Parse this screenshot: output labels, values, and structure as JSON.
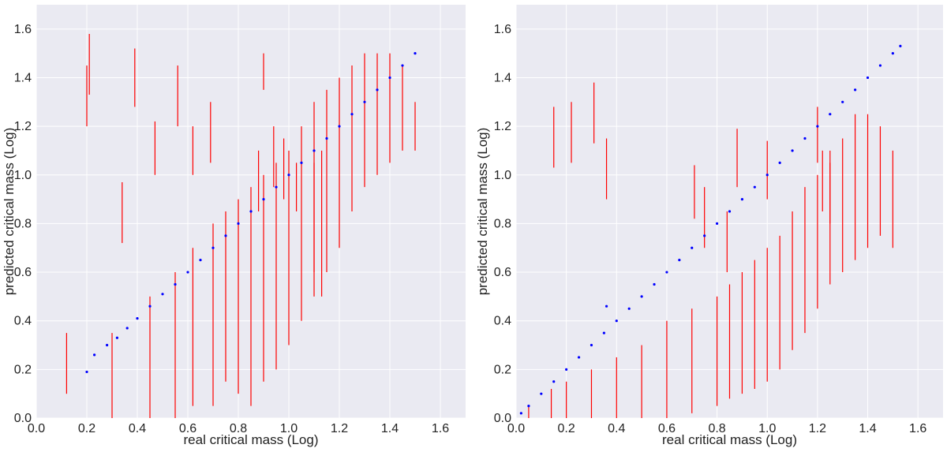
{
  "colors": {
    "plot_background": "#eaeaf2",
    "grid": "#ffffff",
    "points": "#0000ff",
    "error_bars": "#ff0000"
  },
  "chart_data": [
    {
      "type": "scatter",
      "title": "",
      "xlabel": "real critical mass (Log)",
      "ylabel": "predicted critical mass (Log)",
      "xlim": [
        0.0,
        1.7
      ],
      "ylim": [
        0.0,
        1.7
      ],
      "xticks": [
        "0.0",
        "0.2",
        "0.4",
        "0.6",
        "0.8",
        "1.0",
        "1.2",
        "1.4",
        "1.6"
      ],
      "yticks": [
        "0.0",
        "0.2",
        "0.4",
        "0.6",
        "0.8",
        "1.0",
        "1.2",
        "1.4",
        "1.6"
      ],
      "grid": true,
      "legend": "none",
      "series": [
        {
          "kind": "points",
          "color": "#0000ff",
          "x": [
            0.2,
            0.23,
            0.28,
            0.32,
            0.36,
            0.4,
            0.45,
            0.5,
            0.55,
            0.6,
            0.65,
            0.7,
            0.75,
            0.8,
            0.85,
            0.9,
            0.95,
            1.0,
            1.05,
            1.1,
            1.15,
            1.2,
            1.25,
            1.3,
            1.35,
            1.4,
            1.45,
            1.5
          ],
          "y": [
            0.19,
            0.26,
            0.3,
            0.33,
            0.37,
            0.41,
            0.46,
            0.51,
            0.55,
            0.6,
            0.65,
            0.7,
            0.75,
            0.8,
            0.85,
            0.9,
            0.95,
            1.0,
            1.05,
            1.1,
            1.15,
            1.2,
            1.25,
            1.3,
            1.35,
            1.4,
            1.45,
            1.5
          ]
        },
        {
          "kind": "error_bars",
          "color": "#ff0000",
          "x": [
            0.12,
            0.2,
            0.21,
            0.34,
            0.39,
            0.47,
            0.56,
            0.62,
            0.69,
            0.88,
            0.9,
            0.94,
            0.98,
            1.03,
            1.1,
            1.13,
            0.3,
            0.45,
            0.55,
            0.62,
            0.7,
            0.75,
            0.8,
            0.85,
            0.9,
            0.95,
            1.0,
            1.05,
            1.1,
            1.15,
            1.2,
            1.25,
            1.3,
            1.35,
            1.4,
            1.45,
            1.5
          ],
          "low": [
            0.1,
            1.2,
            1.33,
            0.72,
            1.28,
            1.0,
            1.2,
            1.0,
            1.05,
            0.85,
            1.35,
            0.95,
            0.9,
            0.85,
            0.6,
            0.5,
            0.0,
            0.0,
            0.0,
            0.05,
            0.05,
            0.15,
            0.1,
            0.05,
            0.15,
            0.2,
            0.3,
            0.4,
            0.5,
            0.6,
            0.7,
            0.85,
            0.95,
            1.0,
            1.05,
            1.1,
            1.1
          ],
          "high": [
            0.35,
            1.45,
            1.58,
            0.97,
            1.52,
            1.22,
            1.45,
            1.2,
            1.3,
            1.1,
            1.5,
            1.2,
            1.15,
            1.05,
            1.05,
            1.1,
            0.35,
            0.5,
            0.6,
            0.7,
            0.8,
            0.85,
            0.9,
            0.95,
            1.0,
            1.05,
            1.1,
            1.2,
            1.3,
            1.35,
            1.4,
            1.45,
            1.5,
            1.5,
            1.5,
            1.45,
            1.3
          ]
        }
      ]
    },
    {
      "type": "scatter",
      "title": "",
      "xlabel": "real critical mass (Log)",
      "ylabel": "predicted critical mass (Log)",
      "xlim": [
        0.0,
        1.7
      ],
      "ylim": [
        0.0,
        1.7
      ],
      "xticks": [
        "0.0",
        "0.2",
        "0.4",
        "0.6",
        "0.8",
        "1.0",
        "1.2",
        "1.4",
        "1.6"
      ],
      "yticks": [
        "0.0",
        "0.2",
        "0.4",
        "0.6",
        "0.8",
        "1.0",
        "1.2",
        "1.4",
        "1.6"
      ],
      "grid": true,
      "legend": "none",
      "series": [
        {
          "kind": "points",
          "color": "#0000ff",
          "x": [
            0.02,
            0.05,
            0.1,
            0.15,
            0.2,
            0.25,
            0.3,
            0.35,
            0.36,
            0.4,
            0.45,
            0.5,
            0.55,
            0.6,
            0.65,
            0.7,
            0.75,
            0.8,
            0.85,
            0.9,
            0.95,
            1.0,
            1.05,
            1.1,
            1.15,
            1.2,
            1.25,
            1.3,
            1.35,
            1.4,
            1.45,
            1.5,
            1.53
          ],
          "y": [
            0.02,
            0.05,
            0.1,
            0.15,
            0.2,
            0.25,
            0.3,
            0.35,
            0.46,
            0.4,
            0.45,
            0.5,
            0.55,
            0.6,
            0.65,
            0.7,
            0.75,
            0.8,
            0.85,
            0.9,
            0.95,
            1.0,
            1.05,
            1.1,
            1.15,
            1.2,
            1.25,
            1.3,
            1.35,
            1.4,
            1.45,
            1.5,
            1.53
          ]
        },
        {
          "kind": "error_bars",
          "color": "#ff0000",
          "x": [
            0.15,
            0.22,
            0.31,
            0.36,
            0.71,
            0.75,
            0.84,
            0.88,
            1.0,
            1.2,
            1.22,
            1.25,
            0.05,
            0.14,
            0.2,
            0.3,
            0.4,
            0.5,
            0.6,
            0.7,
            0.8,
            0.85,
            0.9,
            0.95,
            1.0,
            1.05,
            1.1,
            1.15,
            1.2,
            1.25,
            1.3,
            1.35,
            1.4,
            1.45,
            1.5
          ],
          "low": [
            1.03,
            1.05,
            1.13,
            0.9,
            0.82,
            0.7,
            0.6,
            0.95,
            0.9,
            1.05,
            0.85,
            0.8,
            0.0,
            0.0,
            0.0,
            0.0,
            0.0,
            0.0,
            0.0,
            0.02,
            0.05,
            0.08,
            0.1,
            0.12,
            0.15,
            0.2,
            0.28,
            0.35,
            0.45,
            0.55,
            0.6,
            0.65,
            0.7,
            0.75,
            0.7
          ],
          "high": [
            1.28,
            1.3,
            1.38,
            1.15,
            1.04,
            0.95,
            0.85,
            1.19,
            1.14,
            1.28,
            1.1,
            1.05,
            0.05,
            0.12,
            0.15,
            0.2,
            0.25,
            0.3,
            0.4,
            0.45,
            0.5,
            0.55,
            0.6,
            0.65,
            0.7,
            0.75,
            0.85,
            0.95,
            1.0,
            1.1,
            1.15,
            1.25,
            1.25,
            1.2,
            1.1
          ]
        }
      ]
    }
  ]
}
